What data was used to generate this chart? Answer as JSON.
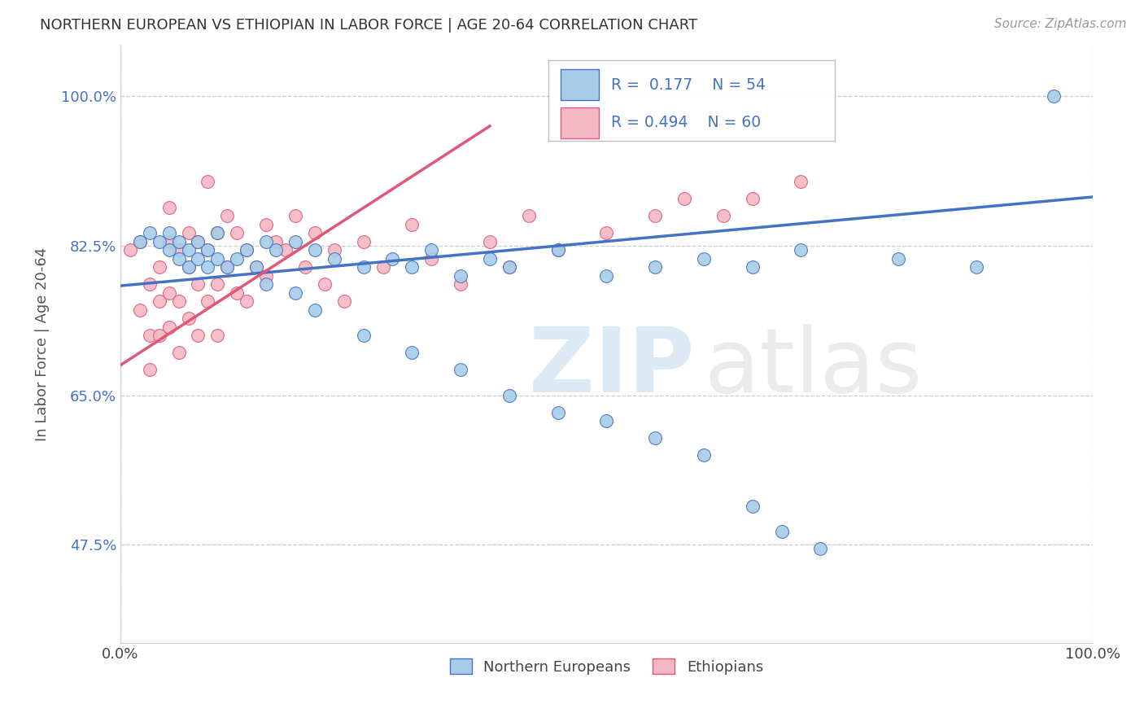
{
  "title": "NORTHERN EUROPEAN VS ETHIOPIAN IN LABOR FORCE | AGE 20-64 CORRELATION CHART",
  "source": "Source: ZipAtlas.com",
  "ylabel": "In Labor Force | Age 20-64",
  "xlim": [
    0.0,
    1.0
  ],
  "ylim": [
    0.36,
    1.06
  ],
  "yticks": [
    0.475,
    0.65,
    0.825,
    1.0
  ],
  "ytick_labels": [
    "47.5%",
    "65.0%",
    "82.5%",
    "100.0%"
  ],
  "xtick_labels": [
    "0.0%",
    "100.0%"
  ],
  "xticks": [
    0.0,
    1.0
  ],
  "r_blue": 0.177,
  "n_blue": 54,
  "r_pink": 0.494,
  "n_pink": 60,
  "blue_color": "#a8cce8",
  "pink_color": "#f4b8c4",
  "blue_line_color": "#4472c4",
  "pink_line_color": "#e05878",
  "legend_labels": [
    "Northern Europeans",
    "Ethiopians"
  ],
  "blue_line_x": [
    0.0,
    1.0
  ],
  "blue_line_y": [
    0.778,
    0.882
  ],
  "pink_line_x": [
    0.0,
    0.38
  ],
  "pink_line_y": [
    0.685,
    0.965
  ],
  "blue_scatter_x": [
    0.02,
    0.03,
    0.04,
    0.05,
    0.05,
    0.06,
    0.06,
    0.07,
    0.07,
    0.08,
    0.08,
    0.09,
    0.09,
    0.1,
    0.1,
    0.11,
    0.12,
    0.13,
    0.14,
    0.15,
    0.16,
    0.18,
    0.2,
    0.22,
    0.25,
    0.28,
    0.3,
    0.32,
    0.35,
    0.38,
    0.4,
    0.45,
    0.5,
    0.55,
    0.6,
    0.65,
    0.7,
    0.8,
    0.88,
    0.96,
    0.15,
    0.18,
    0.2,
    0.25,
    0.3,
    0.35,
    0.4,
    0.45,
    0.5,
    0.55,
    0.6,
    0.65,
    0.68,
    0.72
  ],
  "blue_scatter_y": [
    0.83,
    0.84,
    0.83,
    0.84,
    0.82,
    0.83,
    0.81,
    0.82,
    0.8,
    0.83,
    0.81,
    0.82,
    0.8,
    0.84,
    0.81,
    0.8,
    0.81,
    0.82,
    0.8,
    0.83,
    0.82,
    0.83,
    0.82,
    0.81,
    0.8,
    0.81,
    0.8,
    0.82,
    0.79,
    0.81,
    0.8,
    0.82,
    0.79,
    0.8,
    0.81,
    0.8,
    0.82,
    0.81,
    0.8,
    1.0,
    0.78,
    0.77,
    0.75,
    0.72,
    0.7,
    0.68,
    0.65,
    0.63,
    0.62,
    0.6,
    0.58,
    0.52,
    0.49,
    0.47
  ],
  "pink_scatter_x": [
    0.01,
    0.02,
    0.02,
    0.03,
    0.03,
    0.03,
    0.04,
    0.04,
    0.04,
    0.05,
    0.05,
    0.05,
    0.05,
    0.06,
    0.06,
    0.06,
    0.07,
    0.07,
    0.07,
    0.08,
    0.08,
    0.08,
    0.09,
    0.09,
    0.09,
    0.1,
    0.1,
    0.1,
    0.11,
    0.11,
    0.12,
    0.12,
    0.13,
    0.13,
    0.14,
    0.15,
    0.15,
    0.16,
    0.17,
    0.18,
    0.19,
    0.2,
    0.21,
    0.22,
    0.23,
    0.25,
    0.27,
    0.3,
    0.32,
    0.35,
    0.38,
    0.4,
    0.42,
    0.45,
    0.5,
    0.55,
    0.58,
    0.62,
    0.65,
    0.7
  ],
  "pink_scatter_y": [
    0.82,
    0.75,
    0.83,
    0.78,
    0.72,
    0.68,
    0.8,
    0.76,
    0.72,
    0.83,
    0.77,
    0.73,
    0.87,
    0.82,
    0.76,
    0.7,
    0.84,
    0.8,
    0.74,
    0.83,
    0.78,
    0.72,
    0.82,
    0.76,
    0.9,
    0.84,
    0.78,
    0.72,
    0.86,
    0.8,
    0.84,
    0.77,
    0.82,
    0.76,
    0.8,
    0.85,
    0.79,
    0.83,
    0.82,
    0.86,
    0.8,
    0.84,
    0.78,
    0.82,
    0.76,
    0.83,
    0.8,
    0.85,
    0.81,
    0.78,
    0.83,
    0.8,
    0.86,
    0.82,
    0.84,
    0.86,
    0.88,
    0.86,
    0.88,
    0.9
  ]
}
